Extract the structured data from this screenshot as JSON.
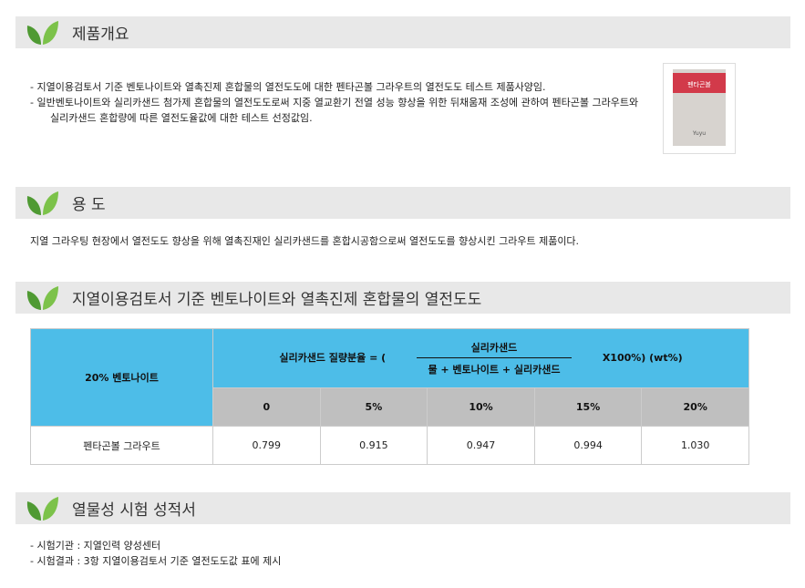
{
  "sections": [
    {
      "title": "제품개요"
    },
    {
      "title": "용 도"
    },
    {
      "title": "지열이용검토서 기준 벤토나이트와 열촉진제 혼합물의 열전도도"
    },
    {
      "title": "열물성 시험 성적서"
    }
  ],
  "overview": {
    "lines": [
      "- 지열이용검토서 기준 벤토나이트와 열촉진제 혼합물의 열전도도에 대한 펜타곤볼 그라우트의 열전도도 테스트 제품사양임.",
      "- 일반벤토나이트와 실리카샌드 첨가제 혼합물의 열전도도로써 지중 열교환기 전열 성능 향상을 위한 뒤채움재 조성에 관하여 펜타곤볼 그라우트와",
      "　　실리카샌드 혼합량에 따른 열전도율값에 대한 테스트 선정값임."
    ],
    "product_image_label": "펜타곤볼"
  },
  "usage": {
    "text": "지열 그라우팅 현장에서 열전도도 향상을 위해 열촉진재인 실리카샌드를 혼합시공함으로써 열전도도를 향상시킨 그라우트 제품이다."
  },
  "table": {
    "row_header": "20% 벤토나이트",
    "formula_prefix": "실리카샌드 질량분율 = (",
    "numerator": "실리카샌드",
    "denominator": "물 + 벤토나이트 + 실리카샌드",
    "formula_suffix": "X100%) (wt%)",
    "columns": [
      "0",
      "5%",
      "10%",
      "15%",
      "20%"
    ],
    "row_label": "펜타곤볼 그라우트",
    "values": [
      "0.799",
      "0.915",
      "0.947",
      "0.994",
      "1.030"
    ]
  },
  "test": {
    "lines": [
      "- 시험기관 : 지열인력 양성센터",
      "- 시험결과 : 3항 지열이용검토서 기준 열전도도값 표에 제시"
    ]
  },
  "colors": {
    "header_bg": "#e8e8e8",
    "table_blue": "#4dbde8",
    "table_gray": "#bfbfbf",
    "leaf": "#5aa83a"
  }
}
